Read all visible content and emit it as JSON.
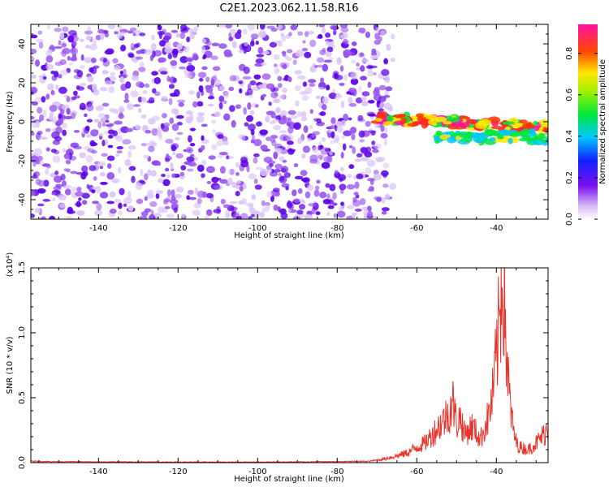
{
  "title": "C2E1.2023.062.11.58.R16",
  "colors": {
    "snr_line": "#e8352c",
    "speckle_dark": "#5a00e6",
    "speckle_mid": "#9a55ee",
    "speckle_light": "#d9c4f7"
  },
  "chart_data": [
    {
      "type": "heatmap",
      "title": "C2E1.2023.062.11.58.R16",
      "xlabel": "Height of straight line (km)",
      "ylabel": "Frequency (Hz)",
      "xlim": [
        -157,
        -27
      ],
      "ylim": [
        -50,
        50
      ],
      "x_ticks": [
        -140,
        -120,
        -100,
        -80,
        -60,
        -40
      ],
      "y_ticks": [
        -40,
        -20,
        0,
        20,
        40
      ],
      "colorbar": {
        "label": "Normalized spectral amplitude",
        "range": [
          0,
          0.94
        ],
        "ticks": [
          0.0,
          0.2,
          0.4,
          0.6,
          0.8
        ],
        "colormap": "rainbow (white → violet → blue → cyan → green → yellow → red → magenta)"
      },
      "regions": [
        {
          "x_range": [
            -157,
            -70
          ],
          "freq_range": [
            -50,
            50
          ],
          "amplitude": 0.1,
          "pattern": "broadband noise speckle"
        },
        {
          "x_range": [
            -70,
            -27
          ],
          "freq_center": 2,
          "freq_center_end": -3,
          "amplitude": 0.85,
          "pattern": "narrow echo band"
        },
        {
          "x_range": [
            -55,
            -27
          ],
          "freq_center": -8,
          "amplitude": 0.5,
          "pattern": "secondary echo branch"
        }
      ]
    },
    {
      "type": "line",
      "xlabel": "Height of straight line (km)",
      "ylabel": "SNR (10 * v/v)",
      "y_scale_label": "(x10⁴)",
      "xlim": [
        -157,
        -27
      ],
      "ylim": [
        0,
        1.5
      ],
      "x_ticks": [
        -140,
        -120,
        -100,
        -80,
        -60,
        -40
      ],
      "y_ticks": [
        0.0,
        0.5,
        1.0,
        1.5
      ],
      "series": [
        {
          "x": [
            -157,
            -150,
            -140,
            -130,
            -120,
            -110,
            -100,
            -90,
            -80,
            -72,
            -68,
            -64,
            -62,
            -60,
            -58,
            -56,
            -54,
            -52,
            -51,
            -50,
            -49,
            -48,
            -46,
            -44,
            -42,
            -41,
            -40,
            -39,
            -38.5,
            -38,
            -37.5,
            -37,
            -36,
            -35,
            -34,
            -32,
            -30,
            -28,
            -27
          ],
          "y": [
            0.01,
            0.008,
            0.006,
            0.006,
            0.005,
            0.005,
            0.005,
            0.006,
            0.008,
            0.01,
            0.03,
            0.06,
            0.08,
            0.12,
            0.15,
            0.22,
            0.3,
            0.38,
            0.48,
            0.3,
            0.35,
            0.22,
            0.28,
            0.18,
            0.35,
            0.5,
            0.8,
            1.2,
            1.5,
            1.3,
            0.9,
            0.6,
            0.3,
            0.15,
            0.12,
            0.1,
            0.15,
            0.22,
            0.28
          ]
        }
      ]
    }
  ]
}
